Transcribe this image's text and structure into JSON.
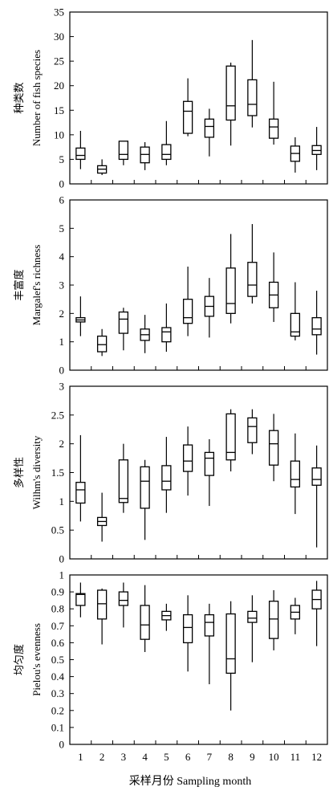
{
  "chart_data": [
    {
      "type": "boxplot",
      "ylabel_zh": "种类数",
      "ylabel": "Number of fish species",
      "ylim": [
        0,
        35
      ],
      "yticks": [
        0,
        5,
        10,
        15,
        20,
        25,
        30,
        35
      ],
      "categories": [
        "1",
        "2",
        "3",
        "4",
        "5",
        "6",
        "7",
        "8",
        "9",
        "10",
        "11",
        "12"
      ],
      "boxes": [
        {
          "min": 3,
          "q1": 5,
          "median": 5.8,
          "q3": 7.3,
          "max": 10.8
        },
        {
          "min": 1.8,
          "q1": 2.2,
          "median": 3,
          "q3": 3.7,
          "max": 5
        },
        {
          "min": 3.8,
          "q1": 5,
          "median": 6,
          "q3": 8.7,
          "max": 8.7
        },
        {
          "min": 2.8,
          "q1": 4.3,
          "median": 6,
          "q3": 7.5,
          "max": 8.5
        },
        {
          "min": 3.8,
          "q1": 5,
          "median": 6,
          "q3": 8,
          "max": 12.8
        },
        {
          "min": 9.7,
          "q1": 10.3,
          "median": 14.8,
          "q3": 16.8,
          "max": 21.5
        },
        {
          "min": 5.6,
          "q1": 9.5,
          "median": 11.7,
          "q3": 13.2,
          "max": 15.3
        },
        {
          "min": 7.8,
          "q1": 13,
          "median": 15.9,
          "q3": 24,
          "max": 24.7
        },
        {
          "min": 11.5,
          "q1": 13.9,
          "median": 16.2,
          "q3": 21.2,
          "max": 29.3
        },
        {
          "min": 8,
          "q1": 9.3,
          "median": 11.6,
          "q3": 13.2,
          "max": 20.8
        },
        {
          "min": 2.3,
          "q1": 4.6,
          "median": 6.2,
          "q3": 7.7,
          "max": 9.5
        },
        {
          "min": 2.8,
          "q1": 6,
          "median": 6.8,
          "q3": 7.8,
          "max": 11.6
        }
      ]
    },
    {
      "type": "boxplot",
      "ylabel_zh": "丰富度",
      "ylabel": "Margalef's richness",
      "ylim": [
        0,
        6
      ],
      "yticks": [
        0,
        1,
        2,
        3,
        4,
        5,
        6
      ],
      "categories": [
        "1",
        "2",
        "3",
        "4",
        "5",
        "6",
        "7",
        "8",
        "9",
        "10",
        "11",
        "12"
      ],
      "boxes": [
        {
          "min": 1.2,
          "q1": 1.7,
          "median": 1.77,
          "q3": 1.85,
          "max": 2.6
        },
        {
          "min": 0.5,
          "q1": 0.65,
          "median": 0.9,
          "q3": 1.2,
          "max": 1.45
        },
        {
          "min": 0.7,
          "q1": 1.3,
          "median": 1.8,
          "q3": 2.05,
          "max": 2.2
        },
        {
          "min": 0.6,
          "q1": 1.05,
          "median": 1.25,
          "q3": 1.45,
          "max": 1.95
        },
        {
          "min": 0.65,
          "q1": 1.0,
          "median": 1.35,
          "q3": 1.5,
          "max": 2.35
        },
        {
          "min": 1.2,
          "q1": 1.65,
          "median": 1.85,
          "q3": 2.5,
          "max": 3.65
        },
        {
          "min": 1.15,
          "q1": 1.9,
          "median": 2.25,
          "q3": 2.6,
          "max": 3.25
        },
        {
          "min": 1.65,
          "q1": 2.0,
          "median": 2.35,
          "q3": 3.6,
          "max": 4.8
        },
        {
          "min": 2.35,
          "q1": 2.6,
          "median": 3.0,
          "q3": 3.8,
          "max": 5.15
        },
        {
          "min": 1.7,
          "q1": 2.2,
          "median": 2.65,
          "q3": 3.1,
          "max": 4.15
        },
        {
          "min": 1.05,
          "q1": 1.2,
          "median": 1.35,
          "q3": 2.0,
          "max": 3.1
        },
        {
          "min": 0.55,
          "q1": 1.25,
          "median": 1.45,
          "q3": 1.85,
          "max": 2.8
        }
      ]
    },
    {
      "type": "boxplot",
      "ylabel_zh": "多样性",
      "ylabel": "Wilhm's diversity",
      "ylim": [
        0,
        3
      ],
      "yticks": [
        0,
        0.5,
        1,
        1.5,
        2,
        2.5,
        3
      ],
      "ytick_labels": [
        "0",
        "0.5",
        "1",
        "1.5",
        "2",
        "2.5",
        "3"
      ],
      "categories": [
        "1",
        "2",
        "3",
        "4",
        "5",
        "6",
        "7",
        "8",
        "9",
        "10",
        "11",
        "12"
      ],
      "boxes": [
        {
          "min": 0.65,
          "q1": 0.97,
          "median": 1.2,
          "q3": 1.33,
          "max": 2.15
        },
        {
          "min": 0.3,
          "q1": 0.58,
          "median": 0.65,
          "q3": 0.72,
          "max": 1.15
        },
        {
          "min": 0.8,
          "q1": 0.98,
          "median": 1.05,
          "q3": 1.72,
          "max": 2.0
        },
        {
          "min": 0.33,
          "q1": 0.88,
          "median": 1.35,
          "q3": 1.6,
          "max": 1.72
        },
        {
          "min": 0.8,
          "q1": 1.2,
          "median": 1.35,
          "q3": 1.62,
          "max": 2.12
        },
        {
          "min": 1.1,
          "q1": 1.52,
          "median": 1.7,
          "q3": 1.98,
          "max": 2.3
        },
        {
          "min": 0.92,
          "q1": 1.45,
          "median": 1.75,
          "q3": 1.85,
          "max": 2.08
        },
        {
          "min": 1.52,
          "q1": 1.72,
          "median": 1.85,
          "q3": 2.52,
          "max": 2.6
        },
        {
          "min": 1.82,
          "q1": 2.02,
          "median": 2.3,
          "q3": 2.45,
          "max": 2.6
        },
        {
          "min": 1.35,
          "q1": 1.63,
          "median": 2.0,
          "q3": 2.23,
          "max": 2.52
        },
        {
          "min": 0.78,
          "q1": 1.25,
          "median": 1.38,
          "q3": 1.7,
          "max": 2.18
        },
        {
          "min": 0.2,
          "q1": 1.28,
          "median": 1.38,
          "q3": 1.58,
          "max": 1.97
        }
      ]
    },
    {
      "type": "boxplot",
      "ylabel_zh": "均匀度",
      "ylabel": "Pielou's evenness",
      "ylim": [
        0,
        1
      ],
      "yticks": [
        0,
        0.1,
        0.2,
        0.3,
        0.4,
        0.5,
        0.6,
        0.7,
        0.8,
        0.9,
        1
      ],
      "ytick_labels": [
        "0",
        "0.1",
        "0.2",
        "0.3",
        "0.4",
        "0.5",
        "0.6",
        "0.7",
        "0.8",
        "0.9",
        "1"
      ],
      "categories": [
        "1",
        "2",
        "3",
        "4",
        "5",
        "6",
        "7",
        "8",
        "9",
        "10",
        "11",
        "12"
      ],
      "boxes": [
        {
          "min": 0.75,
          "q1": 0.82,
          "median": 0.885,
          "q3": 0.89,
          "max": 0.955
        },
        {
          "min": 0.59,
          "q1": 0.74,
          "median": 0.83,
          "q3": 0.91,
          "max": 0.92
        },
        {
          "min": 0.69,
          "q1": 0.82,
          "median": 0.85,
          "q3": 0.9,
          "max": 0.955
        },
        {
          "min": 0.545,
          "q1": 0.62,
          "median": 0.705,
          "q3": 0.82,
          "max": 0.94
        },
        {
          "min": 0.67,
          "q1": 0.735,
          "median": 0.76,
          "q3": 0.785,
          "max": 0.83
        },
        {
          "min": 0.43,
          "q1": 0.6,
          "median": 0.69,
          "q3": 0.765,
          "max": 0.88
        },
        {
          "min": 0.355,
          "q1": 0.64,
          "median": 0.72,
          "q3": 0.765,
          "max": 0.83
        },
        {
          "min": 0.2,
          "q1": 0.42,
          "median": 0.505,
          "q3": 0.77,
          "max": 0.845
        },
        {
          "min": 0.485,
          "q1": 0.72,
          "median": 0.745,
          "q3": 0.785,
          "max": 0.88
        },
        {
          "min": 0.555,
          "q1": 0.625,
          "median": 0.74,
          "q3": 0.845,
          "max": 0.91
        },
        {
          "min": 0.65,
          "q1": 0.74,
          "median": 0.78,
          "q3": 0.82,
          "max": 0.865
        },
        {
          "min": 0.58,
          "q1": 0.8,
          "median": 0.855,
          "q3": 0.91,
          "max": 0.965
        }
      ]
    }
  ],
  "xlabel": "采样月份 Sampling month",
  "xtick_labels": [
    "1",
    "2",
    "3",
    "4",
    "5",
    "6",
    "7",
    "8",
    "9",
    "10",
    "11",
    "12"
  ]
}
